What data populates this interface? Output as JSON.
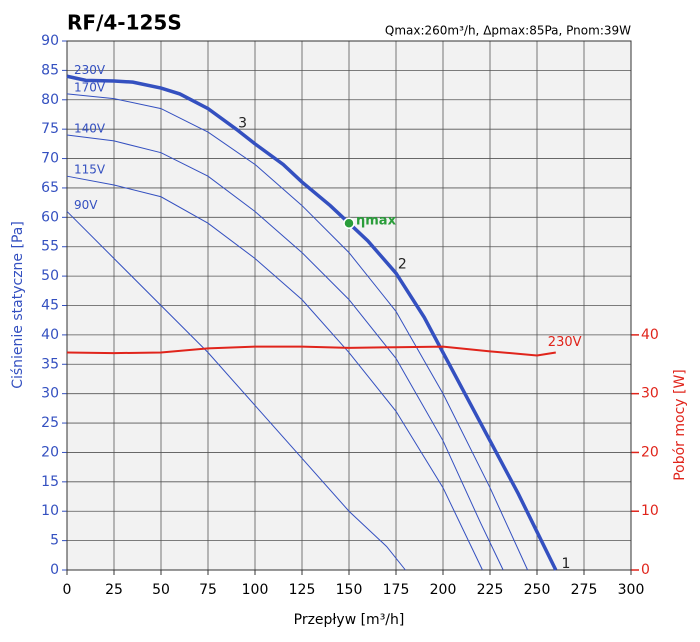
{
  "chart_data": {
    "type": "line",
    "title": "RF/4-125S",
    "subtitle": "Qmax:260m³/h, Δpmax:85Pa, Pnom:39W",
    "xlabel": "Przepływ [m³/h]",
    "ylabel": "Ciśnienie statyczne [Pa]",
    "y2label": "Pobór mocy [W]",
    "xlim": [
      0,
      300
    ],
    "xticks": [
      0,
      25,
      50,
      75,
      100,
      125,
      150,
      175,
      200,
      225,
      250,
      275,
      300
    ],
    "ylim": [
      0,
      90
    ],
    "yticks": [
      0,
      5,
      10,
      15,
      20,
      25,
      30,
      35,
      40,
      45,
      50,
      55,
      60,
      65,
      70,
      75,
      80,
      85,
      90
    ],
    "y2lim": [
      0,
      90
    ],
    "y2ticks": [
      0,
      10,
      20,
      30,
      40
    ],
    "grid": true,
    "series": [
      {
        "name": "230V",
        "color": "#3450c0",
        "line_width": 3.5,
        "x": [
          0,
          10,
          25,
          35,
          50,
          60,
          75,
          90,
          100,
          115,
          125,
          140,
          150,
          160,
          175,
          190,
          200,
          210,
          225,
          240,
          250,
          260
        ],
        "values": [
          84,
          83.3,
          83.2,
          83,
          82,
          81,
          78.5,
          75,
          72.5,
          69,
          66,
          62,
          59,
          56,
          50.5,
          43,
          37,
          31,
          22,
          13,
          6.5,
          0
        ]
      },
      {
        "name": "170V",
        "color": "#3450c0",
        "line_width": 1,
        "x": [
          0,
          25,
          50,
          75,
          100,
          125,
          150,
          175,
          200,
          225,
          245
        ],
        "values": [
          81,
          80.2,
          78.5,
          74.5,
          69,
          62,
          54,
          44,
          30,
          14,
          0
        ]
      },
      {
        "name": "140V",
        "color": "#3450c0",
        "line_width": 1,
        "x": [
          0,
          25,
          50,
          75,
          100,
          125,
          150,
          175,
          200,
          220,
          232
        ],
        "values": [
          74,
          73,
          71,
          67,
          61,
          54,
          46,
          36,
          22,
          8,
          0
        ]
      },
      {
        "name": "115V",
        "color": "#3450c0",
        "line_width": 1,
        "x": [
          0,
          25,
          50,
          75,
          100,
          125,
          150,
          175,
          200,
          221
        ],
        "values": [
          67,
          65.5,
          63.5,
          59,
          53,
          46,
          37,
          27,
          14,
          0
        ]
      },
      {
        "name": "90V",
        "color": "#3450c0",
        "line_width": 1,
        "x": [
          0,
          25,
          50,
          75,
          100,
          125,
          150,
          170,
          180
        ],
        "values": [
          61,
          53,
          45,
          37,
          28,
          19,
          10,
          4,
          0
        ]
      },
      {
        "name": "230V",
        "color": "#e0241b",
        "line_width": 2,
        "axis": "y2",
        "x": [
          0,
          25,
          50,
          75,
          100,
          125,
          150,
          175,
          200,
          225,
          250,
          260
        ],
        "values": [
          37,
          36.9,
          37,
          37.7,
          38,
          38,
          37.8,
          37.9,
          38,
          37.2,
          36.5,
          37
        ]
      }
    ],
    "annotations": [
      {
        "text": "3",
        "x": 91,
        "y": 76
      },
      {
        "text": "2",
        "x": 176,
        "y": 52
      },
      {
        "text": "1",
        "x": 263,
        "y": 1
      },
      {
        "text": "ηmax",
        "x": 150,
        "y": 59,
        "color": "#2a9d3a"
      }
    ]
  }
}
